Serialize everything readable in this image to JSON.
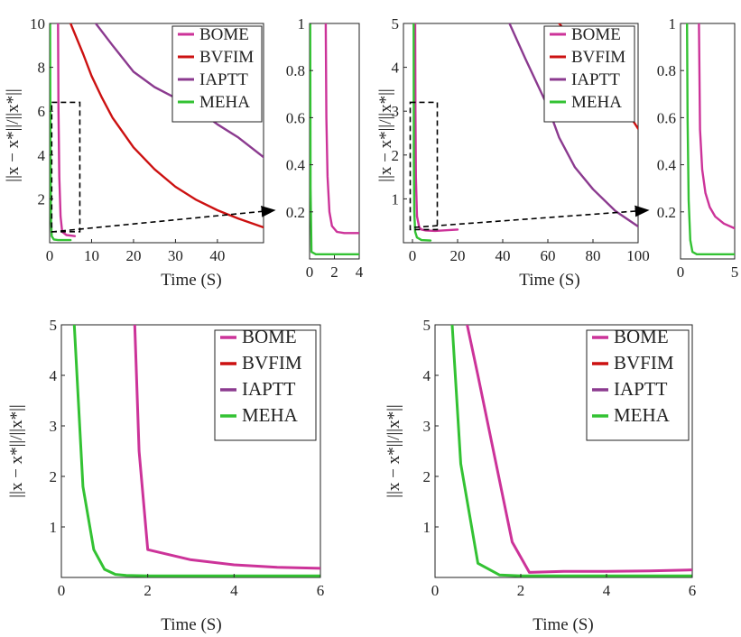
{
  "colors": {
    "BOME": "#cc3399",
    "BVFIM": "#cc1111",
    "IAPTT": "#8b3a8f",
    "MEHA": "#33c233",
    "axis": "#222222"
  },
  "ylabel_text": "||x − x*||/||x*||",
  "chart_data": [
    {
      "id": "top-left-main",
      "type": "line",
      "xlabel": "Time (S)",
      "ylabel": "||x − x*||/||x*||",
      "xlim": [
        0,
        51
      ],
      "ylim": [
        0,
        10
      ],
      "xticks": [
        0,
        10,
        20,
        30,
        40
      ],
      "yticks": [
        2,
        4,
        6,
        8,
        10
      ],
      "legend": "top-right",
      "zoom_box": {
        "x": [
          0.5,
          7.2
        ],
        "y": [
          0.5,
          6.4
        ]
      },
      "series": [
        {
          "name": "BOME",
          "x": [
            2.0,
            2.1,
            2.3,
            2.6,
            3.0,
            4.0,
            6.0
          ],
          "y": [
            10.0,
            6.0,
            3.0,
            1.2,
            0.5,
            0.35,
            0.3
          ]
        },
        {
          "name": "BVFIM",
          "x": [
            5,
            8,
            10,
            12.5,
            15,
            20,
            25,
            30,
            35,
            40,
            45,
            51
          ],
          "y": [
            10.0,
            8.6,
            7.6,
            6.6,
            5.7,
            4.35,
            3.35,
            2.55,
            1.95,
            1.48,
            1.1,
            0.7
          ]
        },
        {
          "name": "IAPTT",
          "x": [
            11,
            15,
            20,
            25,
            30,
            35,
            40,
            45,
            51
          ],
          "y": [
            10.0,
            9.0,
            7.8,
            7.1,
            6.6,
            6.1,
            5.4,
            4.8,
            3.9
          ]
        },
        {
          "name": "MEHA",
          "x": [
            0.1,
            0.2,
            0.3,
            0.5,
            1,
            2,
            5
          ],
          "y": [
            10.0,
            4.0,
            1.2,
            0.3,
            0.15,
            0.12,
            0.12
          ]
        }
      ]
    },
    {
      "id": "top-left-zoom",
      "type": "line",
      "xlim": [
        0,
        4
      ],
      "ylim": [
        0,
        1
      ],
      "xticks": [
        0,
        2,
        4
      ],
      "yticks": [
        0.2,
        0.4,
        0.6,
        0.8,
        1
      ],
      "series": [
        {
          "name": "BOME",
          "x": [
            1.3,
            1.35,
            1.45,
            1.6,
            1.8,
            2.2,
            2.8,
            4.0
          ],
          "y": [
            1.0,
            0.6,
            0.35,
            0.2,
            0.14,
            0.115,
            0.11,
            0.11
          ]
        },
        {
          "name": "MEHA",
          "x": [
            0.05,
            0.08,
            0.15,
            0.5,
            4.0
          ],
          "y": [
            1.0,
            0.3,
            0.03,
            0.02,
            0.02
          ]
        }
      ]
    },
    {
      "id": "top-right-main",
      "type": "line",
      "xlabel": "Time (S)",
      "xlim": [
        -4,
        100
      ],
      "ylim": [
        0,
        5
      ],
      "xticks": [
        0,
        20,
        40,
        60,
        80,
        100
      ],
      "yticks": [
        1,
        2,
        3,
        4,
        5
      ],
      "legend": "top-right",
      "zoom_box": {
        "x": [
          -1,
          11
        ],
        "y": [
          0.3,
          3.2
        ]
      },
      "series": [
        {
          "name": "BOME",
          "x": [
            1.2,
            1.3,
            1.5,
            2.0,
            3.0,
            4.0,
            6.0,
            10.0,
            20.0
          ],
          "y": [
            5.0,
            3.0,
            1.5,
            0.6,
            0.35,
            0.3,
            0.28,
            0.27,
            0.3
          ]
        },
        {
          "name": "BVFIM",
          "x": [
            65,
            75,
            90,
            100
          ],
          "y": [
            5.0,
            4.4,
            3.4,
            2.6
          ]
        },
        {
          "name": "IAPTT",
          "x": [
            43,
            50,
            60,
            65,
            72,
            80,
            90,
            100
          ],
          "y": [
            5.0,
            4.2,
            3.1,
            2.4,
            1.72,
            1.22,
            0.72,
            0.37
          ]
        },
        {
          "name": "MEHA",
          "x": [
            0.5,
            0.6,
            0.8,
            1.2,
            2.0,
            4.0,
            8.0
          ],
          "y": [
            5.0,
            2.0,
            0.7,
            0.25,
            0.12,
            0.06,
            0.05
          ]
        }
      ]
    },
    {
      "id": "top-right-zoom",
      "type": "line",
      "xlim": [
        0,
        5
      ],
      "ylim": [
        0,
        1
      ],
      "xticks": [
        0,
        5
      ],
      "yticks": [
        0.2,
        0.4,
        0.6,
        0.8,
        1
      ],
      "series": [
        {
          "name": "BOME",
          "x": [
            1.7,
            1.8,
            2.0,
            2.3,
            2.7,
            3.2,
            4.0,
            5.0
          ],
          "y": [
            1.0,
            0.55,
            0.38,
            0.28,
            0.22,
            0.18,
            0.15,
            0.13
          ]
        },
        {
          "name": "MEHA",
          "x": [
            0.6,
            0.65,
            0.75,
            0.9,
            1.1,
            1.5,
            5.0
          ],
          "y": [
            1.0,
            0.6,
            0.25,
            0.08,
            0.03,
            0.02,
            0.02
          ]
        }
      ]
    },
    {
      "id": "bottom-left",
      "type": "line",
      "xlabel": "Time (S)",
      "ylabel": "||x − x*||/||x*||",
      "xlim": [
        0,
        6
      ],
      "ylim": [
        0,
        5
      ],
      "xticks": [
        0,
        2,
        4,
        6
      ],
      "yticks": [
        1,
        2,
        3,
        4,
        5
      ],
      "legend": "top-right",
      "series": [
        {
          "name": "BOME",
          "x": [
            1.7,
            1.8,
            2.0,
            3.0,
            4.0,
            5.0,
            6.0
          ],
          "y": [
            5.0,
            2.5,
            0.55,
            0.35,
            0.25,
            0.2,
            0.18
          ]
        },
        {
          "name": "MEHA",
          "x": [
            0.3,
            0.5,
            0.75,
            1.0,
            1.25,
            1.5,
            2.0,
            3.0,
            4.0,
            6.0
          ],
          "y": [
            5.0,
            1.8,
            0.55,
            0.16,
            0.06,
            0.04,
            0.03,
            0.03,
            0.03,
            0.03
          ]
        }
      ]
    },
    {
      "id": "bottom-right",
      "type": "line",
      "xlabel": "Time (S)",
      "ylabel": "||x − x*||/||x*||",
      "xlim": [
        0,
        6
      ],
      "ylim": [
        0,
        5
      ],
      "xticks": [
        0,
        2,
        4,
        6
      ],
      "yticks": [
        1,
        2,
        3,
        4,
        5
      ],
      "legend": "top-right",
      "series": [
        {
          "name": "BOME",
          "x": [
            0.75,
            1.0,
            1.8,
            2.2,
            3.0,
            4.0,
            5.0,
            6.0
          ],
          "y": [
            5.0,
            4.0,
            0.7,
            0.1,
            0.12,
            0.12,
            0.13,
            0.15
          ]
        },
        {
          "name": "MEHA",
          "x": [
            0.4,
            0.6,
            1.0,
            1.5,
            2.0,
            3.0,
            6.0
          ],
          "y": [
            5.0,
            2.25,
            0.28,
            0.05,
            0.03,
            0.03,
            0.03
          ]
        }
      ]
    }
  ],
  "legend_entries": [
    "BOME",
    "BVFIM",
    "IAPTT",
    "MEHA"
  ]
}
